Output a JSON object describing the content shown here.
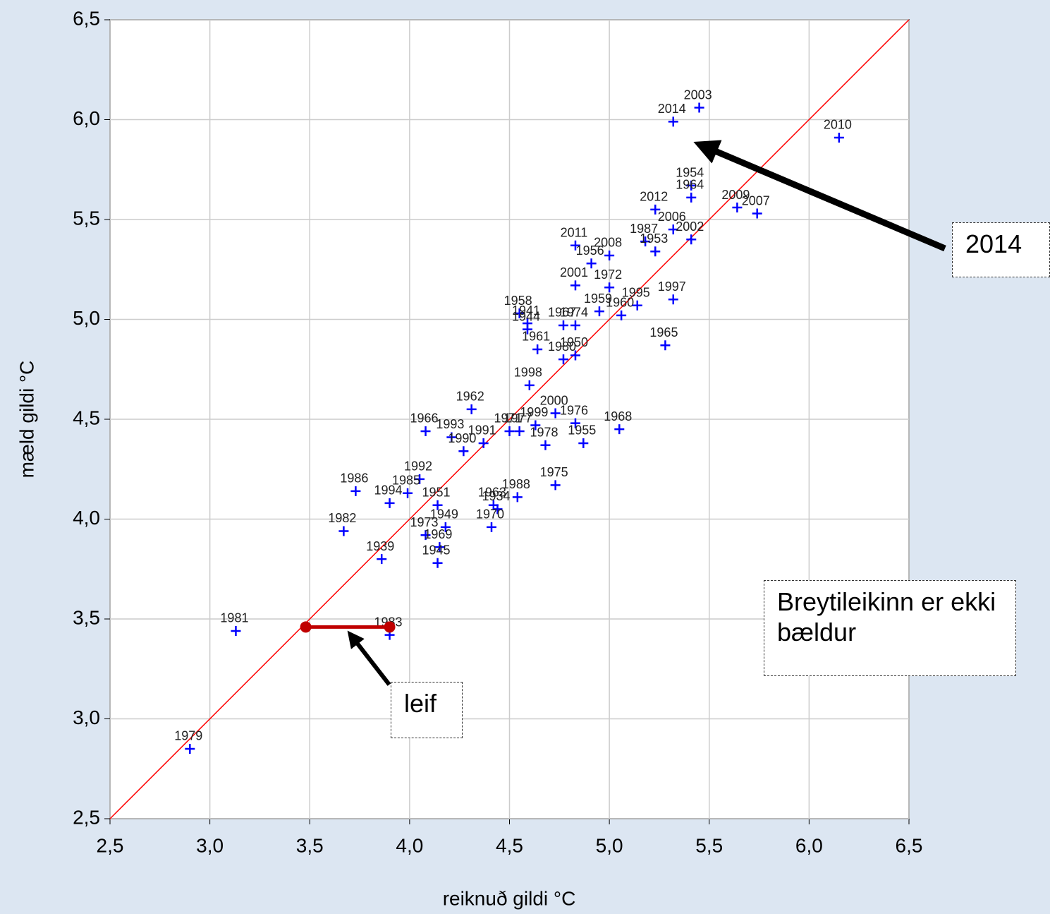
{
  "chart_data": {
    "type": "scatter",
    "xlabel": "reiknuð gildi °C",
    "ylabel": "mæld gildi °C",
    "color": "#0000ff",
    "line_color": "#ff0000",
    "identity_line": true,
    "grid": true,
    "xlim": [
      2.5,
      6.5
    ],
    "ylim": [
      2.5,
      6.5
    ],
    "xticks": [
      {
        "value": 2.5,
        "label": "2,5"
      },
      {
        "value": 3,
        "label": "3,0"
      },
      {
        "value": 3.5,
        "label": "3,5"
      },
      {
        "value": 4,
        "label": "4,0"
      },
      {
        "value": 4.5,
        "label": "4,5"
      },
      {
        "value": 5,
        "label": "5,0"
      },
      {
        "value": 5.5,
        "label": "5,5"
      },
      {
        "value": 6,
        "label": "6,0"
      },
      {
        "value": 6.5,
        "label": "6,5"
      }
    ],
    "yticks": [
      {
        "value": 2.5,
        "label": "2,5"
      },
      {
        "value": 3,
        "label": "3,0"
      },
      {
        "value": 3.5,
        "label": "3,5"
      },
      {
        "value": 4,
        "label": "4,0"
      },
      {
        "value": 4.5,
        "label": "4,5"
      },
      {
        "value": 5,
        "label": "5,0"
      },
      {
        "value": 5.5,
        "label": "5,5"
      },
      {
        "value": 6,
        "label": "6,0"
      },
      {
        "value": 6.5,
        "label": "6,5"
      }
    ],
    "labels": [
      "2003",
      "2014",
      "2010",
      "1954",
      "1964",
      "2012",
      "2009",
      "2007",
      "2006",
      "1987",
      "2002",
      "1953",
      "2011",
      "1956",
      "2008",
      "2001",
      "1972",
      "1997",
      "1959",
      "1960",
      "1995",
      "1958",
      "1941",
      "1944",
      "1967",
      "1974",
      "1965",
      "1961",
      "1980",
      "1950",
      "1998",
      "1962",
      "2000",
      "1976",
      "1968",
      "1999",
      "1971",
      "1977",
      "1978",
      "1955",
      "1966",
      "1993",
      "1990",
      "1991",
      "1992",
      "1986",
      "1985",
      "1994",
      "1951",
      "1988",
      "1975",
      "1963",
      "1934",
      "1970",
      "1982",
      "1949",
      "1973",
      "1969",
      "1939",
      "1945",
      "1981",
      "1983",
      "1979"
    ],
    "x": [
      5.45,
      5.32,
      6.15,
      5.41,
      5.41,
      5.23,
      5.64,
      5.74,
      5.32,
      5.18,
      5.41,
      5.23,
      4.83,
      4.91,
      5.0,
      4.83,
      5.0,
      5.32,
      4.95,
      5.06,
      5.14,
      4.55,
      4.59,
      4.59,
      4.77,
      4.83,
      5.28,
      4.64,
      4.77,
      4.83,
      4.6,
      4.31,
      4.73,
      4.83,
      5.05,
      4.63,
      4.5,
      4.55,
      4.68,
      4.87,
      4.08,
      4.21,
      4.27,
      4.37,
      4.05,
      3.73,
      3.99,
      3.9,
      4.14,
      4.54,
      4.73,
      4.42,
      4.44,
      4.41,
      3.67,
      4.18,
      4.08,
      4.15,
      3.86,
      4.14,
      3.13,
      3.9,
      2.9
    ],
    "y": [
      6.06,
      5.99,
      5.91,
      5.67,
      5.61,
      5.55,
      5.56,
      5.53,
      5.45,
      5.39,
      5.4,
      5.34,
      5.37,
      5.28,
      5.32,
      5.17,
      5.16,
      5.1,
      5.04,
      5.02,
      5.07,
      5.03,
      4.98,
      4.95,
      4.97,
      4.97,
      4.87,
      4.85,
      4.8,
      4.82,
      4.67,
      4.55,
      4.53,
      4.48,
      4.45,
      4.47,
      4.44,
      4.44,
      4.37,
      4.38,
      4.44,
      4.41,
      4.34,
      4.38,
      4.2,
      4.14,
      4.13,
      4.08,
      4.07,
      4.11,
      4.17,
      4.07,
      4.05,
      3.96,
      3.94,
      3.96,
      3.92,
      3.86,
      3.8,
      3.78,
      3.44,
      3.42,
      2.85
    ],
    "residual_segment": {
      "x": [
        3.48,
        3.9
      ],
      "y": [
        3.46,
        3.46
      ],
      "color": "#c00000"
    },
    "annotations": [
      {
        "text": "2014"
      },
      {
        "text": "Breytileikinn er ekki bældur"
      },
      {
        "text": "leif"
      }
    ]
  }
}
